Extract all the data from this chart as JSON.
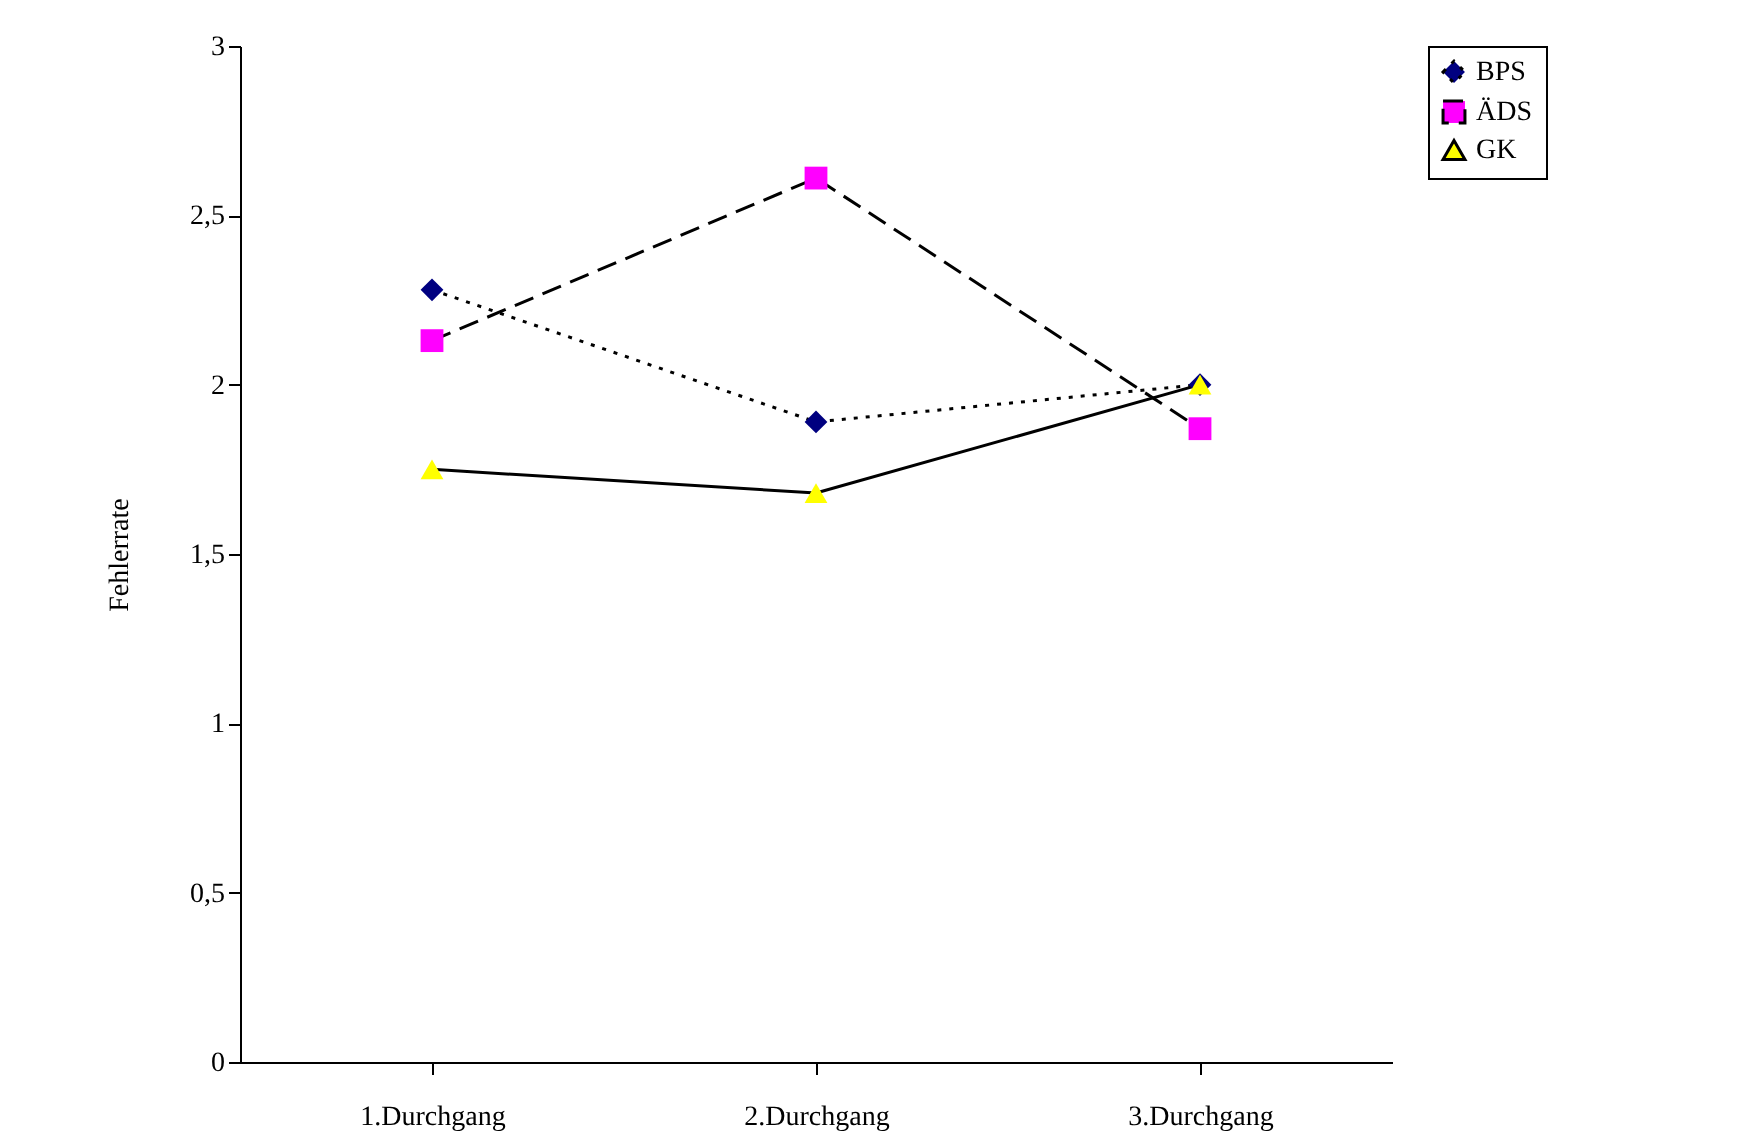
{
  "chart_data": {
    "type": "line",
    "ylabel": "Fehlerrate",
    "categories": [
      "1.Durchgang",
      "2.Durchgang",
      "3.Durchgang"
    ],
    "series": [
      {
        "name": "BPS",
        "color": "#000080",
        "marker": "diamond",
        "line_style": "dotted",
        "values": [
          2.28,
          1.89,
          2.0
        ]
      },
      {
        "name": "ÄDS",
        "color": "#ff00ff",
        "marker": "square",
        "line_style": "dashed",
        "values": [
          2.13,
          2.61,
          1.87
        ]
      },
      {
        "name": "GK",
        "color": "#ffff00",
        "marker": "triangle",
        "line_style": "solid",
        "values": [
          1.75,
          1.68,
          2.0
        ]
      }
    ],
    "ylim": [
      0,
      3
    ],
    "yticks": [
      0,
      {
        "value": 0.5,
        "label": "0,5"
      },
      1,
      {
        "value": 1.5,
        "label": "1,5"
      },
      2,
      {
        "value": 2.5,
        "label": "2,5"
      },
      3
    ],
    "grid": false,
    "legend": "right"
  }
}
